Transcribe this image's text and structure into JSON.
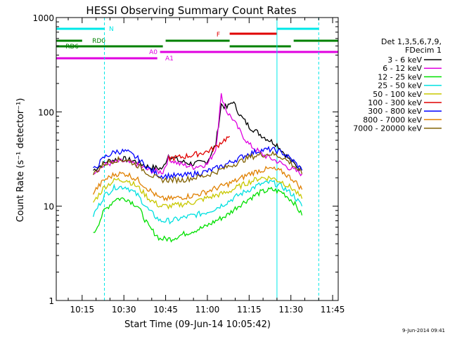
{
  "chart_data": {
    "type": "line",
    "title": "HESSI Observing Summary Count Rates",
    "xlabel": "Start Time (09-Jun-14 10:05:42)",
    "ylabel": "Count Rate (s⁻¹ detector⁻¹)",
    "yscale": "log",
    "ylim": [
      1,
      1000
    ],
    "xlim": [
      "10:05:42",
      "11:47:00"
    ],
    "x_ticks": [
      "10:15",
      "10:30",
      "10:45",
      "11:00",
      "11:15",
      "11:30",
      "11:45"
    ],
    "y_ticks": [
      "1",
      "10",
      "100",
      "1000"
    ],
    "grid": false,
    "legend_placement": "right",
    "legend_header": [
      "Det 1,3,5,6,7,9,",
      "FDecim 1"
    ],
    "footer_date": "9-Jun-2014 09:41",
    "series": [
      {
        "name": "3 - 6 keV",
        "color": "#000000",
        "x": [
          "10:19",
          "10:24",
          "10:29",
          "10:34",
          "10:39",
          "10:44",
          "10:46",
          "10:50",
          "10:55",
          "11:00",
          "11:03",
          "11:05",
          "11:07",
          "11:09",
          "11:12",
          "11:15",
          "11:20",
          "11:25",
          "11:30",
          "11:34"
        ],
        "values": [
          24,
          30,
          32,
          30,
          26,
          25,
          35,
          30,
          28,
          30,
          45,
          120,
          110,
          130,
          90,
          70,
          55,
          45,
          30,
          24
        ]
      },
      {
        "name": "6 - 12 keV",
        "color": "#e000e0",
        "x": [
          "10:19",
          "10:24",
          "10:29",
          "10:34",
          "10:39",
          "10:44",
          "10:46",
          "10:50",
          "10:55",
          "11:00",
          "11:03",
          "11:05",
          "11:07",
          "11:09",
          "11:12",
          "11:15",
          "11:20",
          "11:25",
          "11:30",
          "11:34"
        ],
        "values": [
          23,
          28,
          30,
          28,
          24,
          23,
          32,
          28,
          26,
          28,
          40,
          150,
          100,
          85,
          60,
          45,
          35,
          30,
          25,
          22
        ]
      },
      {
        "name": "12 - 25 keV",
        "color": "#00e000",
        "x": [
          "10:19",
          "10:23",
          "10:27",
          "10:31",
          "10:35",
          "10:39",
          "10:43",
          "10:47",
          "10:51",
          "10:55",
          "10:59",
          "11:03",
          "11:07",
          "11:11",
          "11:15",
          "11:19",
          "11:23",
          "11:27",
          "11:31",
          "11:34"
        ],
        "values": [
          5,
          9,
          12,
          12,
          10,
          6,
          4.5,
          4.5,
          5,
          5.5,
          6,
          7,
          8,
          10,
          12,
          14,
          15,
          14,
          11,
          8
        ]
      },
      {
        "name": "25 - 50 keV",
        "color": "#00e0e0",
        "x": [
          "10:19",
          "10:23",
          "10:27",
          "10:31",
          "10:35",
          "10:39",
          "10:43",
          "10:47",
          "10:51",
          "10:55",
          "10:59",
          "11:03",
          "11:07",
          "11:11",
          "11:15",
          "11:19",
          "11:23",
          "11:27",
          "11:31",
          "11:34"
        ],
        "values": [
          8,
          13,
          16,
          16,
          13,
          9,
          7,
          7,
          7.5,
          8,
          8.5,
          9.5,
          11,
          13,
          15,
          17,
          18,
          16,
          13,
          10
        ]
      },
      {
        "name": "50 - 100 keV",
        "color": "#c8c800",
        "x": [
          "10:19",
          "10:23",
          "10:27",
          "10:31",
          "10:35",
          "10:39",
          "10:43",
          "10:47",
          "10:51",
          "10:55",
          "10:59",
          "11:03",
          "11:07",
          "11:11",
          "11:15",
          "11:19",
          "11:23",
          "11:27",
          "11:31",
          "11:34"
        ],
        "values": [
          11,
          16,
          19,
          19,
          16,
          12,
          10,
          10,
          10.5,
          11,
          12,
          13,
          14,
          16,
          18,
          20,
          20,
          18,
          15,
          12
        ]
      },
      {
        "name": "100 - 300 keV",
        "color": "#e00000",
        "x": [
          "10:46",
          "10:50",
          "10:55",
          "11:00",
          "11:03",
          "11:05",
          "11:08"
        ],
        "values": [
          32,
          33,
          35,
          38,
          42,
          48,
          55
        ]
      },
      {
        "name": "300 - 800 keV",
        "color": "#0000ff",
        "x": [
          "10:19",
          "10:23",
          "10:27",
          "10:31",
          "10:35",
          "10:39",
          "10:43",
          "10:47",
          "10:51",
          "10:55",
          "10:59",
          "11:03",
          "11:07",
          "11:11",
          "11:15",
          "11:19",
          "11:23",
          "11:27",
          "11:31",
          "11:34"
        ],
        "values": [
          24,
          33,
          38,
          38,
          32,
          25,
          21,
          21,
          21,
          22,
          23,
          25,
          28,
          32,
          36,
          39,
          40,
          37,
          30,
          24
        ]
      },
      {
        "name": "800 - 7000 keV",
        "color": "#e08000",
        "x": [
          "10:19",
          "10:23",
          "10:27",
          "10:31",
          "10:35",
          "10:39",
          "10:43",
          "10:47",
          "10:51",
          "10:55",
          "10:59",
          "11:03",
          "11:07",
          "11:11",
          "11:15",
          "11:19",
          "11:23",
          "11:27",
          "11:31",
          "11:34"
        ],
        "values": [
          14,
          19,
          22,
          22,
          19,
          15,
          12,
          12,
          12.5,
          13,
          14,
          15.5,
          17,
          19,
          22,
          24,
          25,
          23,
          19,
          15
        ]
      },
      {
        "name": "7000 - 20000 keV",
        "color": "#806000",
        "x": [
          "10:19",
          "10:23",
          "10:27",
          "10:31",
          "10:35",
          "10:39",
          "10:43",
          "10:47",
          "10:51",
          "10:55",
          "10:59",
          "11:03",
          "11:07",
          "11:11",
          "11:15",
          "11:19",
          "11:23",
          "11:27",
          "11:31",
          "11:34"
        ],
        "values": [
          22,
          28,
          31,
          31,
          27,
          22,
          19,
          19,
          19,
          20,
          21,
          23,
          26,
          29,
          33,
          35,
          36,
          33,
          27,
          22
        ]
      }
    ],
    "flag_bars": [
      {
        "label": "N",
        "color": "#00e8e8",
        "segments": [
          [
            "10:05:42",
            "10:23"
          ],
          [
            "11:25",
            "11:40"
          ]
        ]
      },
      {
        "label": "F",
        "color": "#e00000",
        "segments": [
          [
            "11:08",
            "11:25"
          ]
        ]
      },
      {
        "label": "RD0",
        "color": "#008000",
        "segments": [
          [
            "10:05:42",
            "10:15"
          ],
          [
            "10:45",
            "11:08"
          ],
          [
            "11:31",
            "11:47"
          ]
        ]
      },
      {
        "label": "RD6",
        "color": "#008000",
        "segments": [
          [
            "10:05:42",
            "10:44"
          ],
          [
            "11:08",
            "11:30"
          ]
        ]
      },
      {
        "label": "A0",
        "color": "#e000e0",
        "segments": [
          [
            "10:43",
            "11:47"
          ]
        ]
      },
      {
        "label": "A1",
        "color": "#e000e0",
        "segments": [
          [
            "10:05:42",
            "10:42"
          ]
        ]
      }
    ],
    "vertical_markers": [
      {
        "time": "10:05:42",
        "style": "solid",
        "color": "#00e8e8"
      },
      {
        "time": "10:23",
        "style": "dashed",
        "color": "#00e8e8"
      },
      {
        "time": "11:25",
        "style": "solid",
        "color": "#00e8e8"
      },
      {
        "time": "11:40",
        "style": "dashed",
        "color": "#00e8e8"
      }
    ]
  }
}
